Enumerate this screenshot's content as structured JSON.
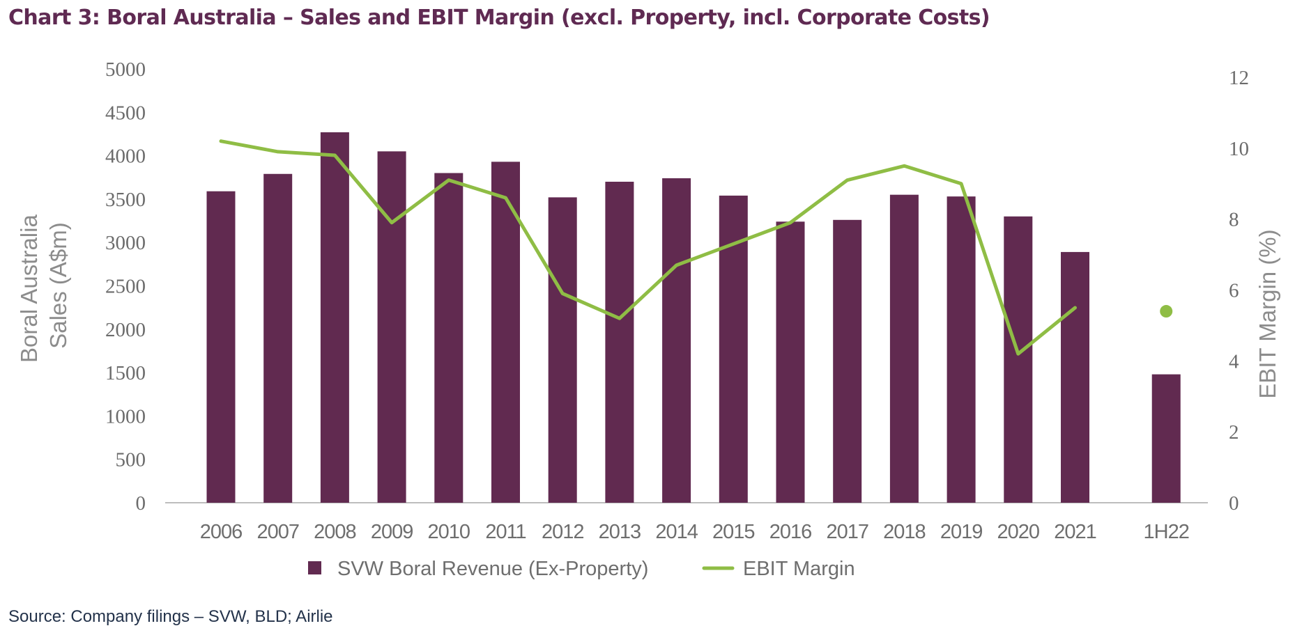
{
  "title": "Chart 3:  Boral Australia  – Sales and EBIT Margin (excl. Property, incl. Corporate Costs)",
  "source": "Source: Company filings – SVW, BLD; Airlie",
  "colors": {
    "bar": "#612a50",
    "line": "#8fbd45",
    "title": "#5f2a52",
    "axis": "#bdbdbd"
  },
  "chart_data": {
    "type": "bar",
    "title": "Chart 3:  Boral Australia  – Sales and EBIT Margin (excl. Property, incl. Corporate Costs)",
    "categories": [
      "2006",
      "2007",
      "2008",
      "2009",
      "2010",
      "2011",
      "2012",
      "2013",
      "2014",
      "2015",
      "2016",
      "2017",
      "2018",
      "2019",
      "2020",
      "2021",
      "1H22"
    ],
    "ylabel": "Boral Australia Sales (A$m)",
    "ylabel_lines": [
      "Boral Australia",
      "Sales (A$m)"
    ],
    "y2label": "EBIT Margin (%)",
    "ylim": [
      0,
      5000
    ],
    "y_ticks": [
      0,
      500,
      1000,
      1500,
      2000,
      2500,
      3000,
      3500,
      4000,
      4500,
      5000
    ],
    "y2lim": [
      0,
      12
    ],
    "y2_ticks": [
      0,
      2,
      4,
      6,
      8,
      10,
      12
    ],
    "grid": false,
    "legend_position": "bottom-center",
    "series": [
      {
        "name": "SVW Boral Revenue (Ex-Property)",
        "type": "bar",
        "axis": "left",
        "values": [
          3590,
          3790,
          4270,
          4050,
          3800,
          3930,
          3520,
          3700,
          3740,
          3540,
          3240,
          3260,
          3550,
          3530,
          3300,
          2890,
          1480
        ]
      },
      {
        "name": "EBIT Margin",
        "type": "line",
        "axis": "right",
        "values": [
          10.2,
          9.9,
          9.8,
          7.9,
          9.1,
          8.6,
          5.9,
          5.2,
          6.7,
          7.3,
          7.9,
          9.1,
          9.5,
          9.0,
          4.2,
          5.5,
          null
        ],
        "separate_points": {
          "1H22": 5.4
        }
      }
    ]
  }
}
